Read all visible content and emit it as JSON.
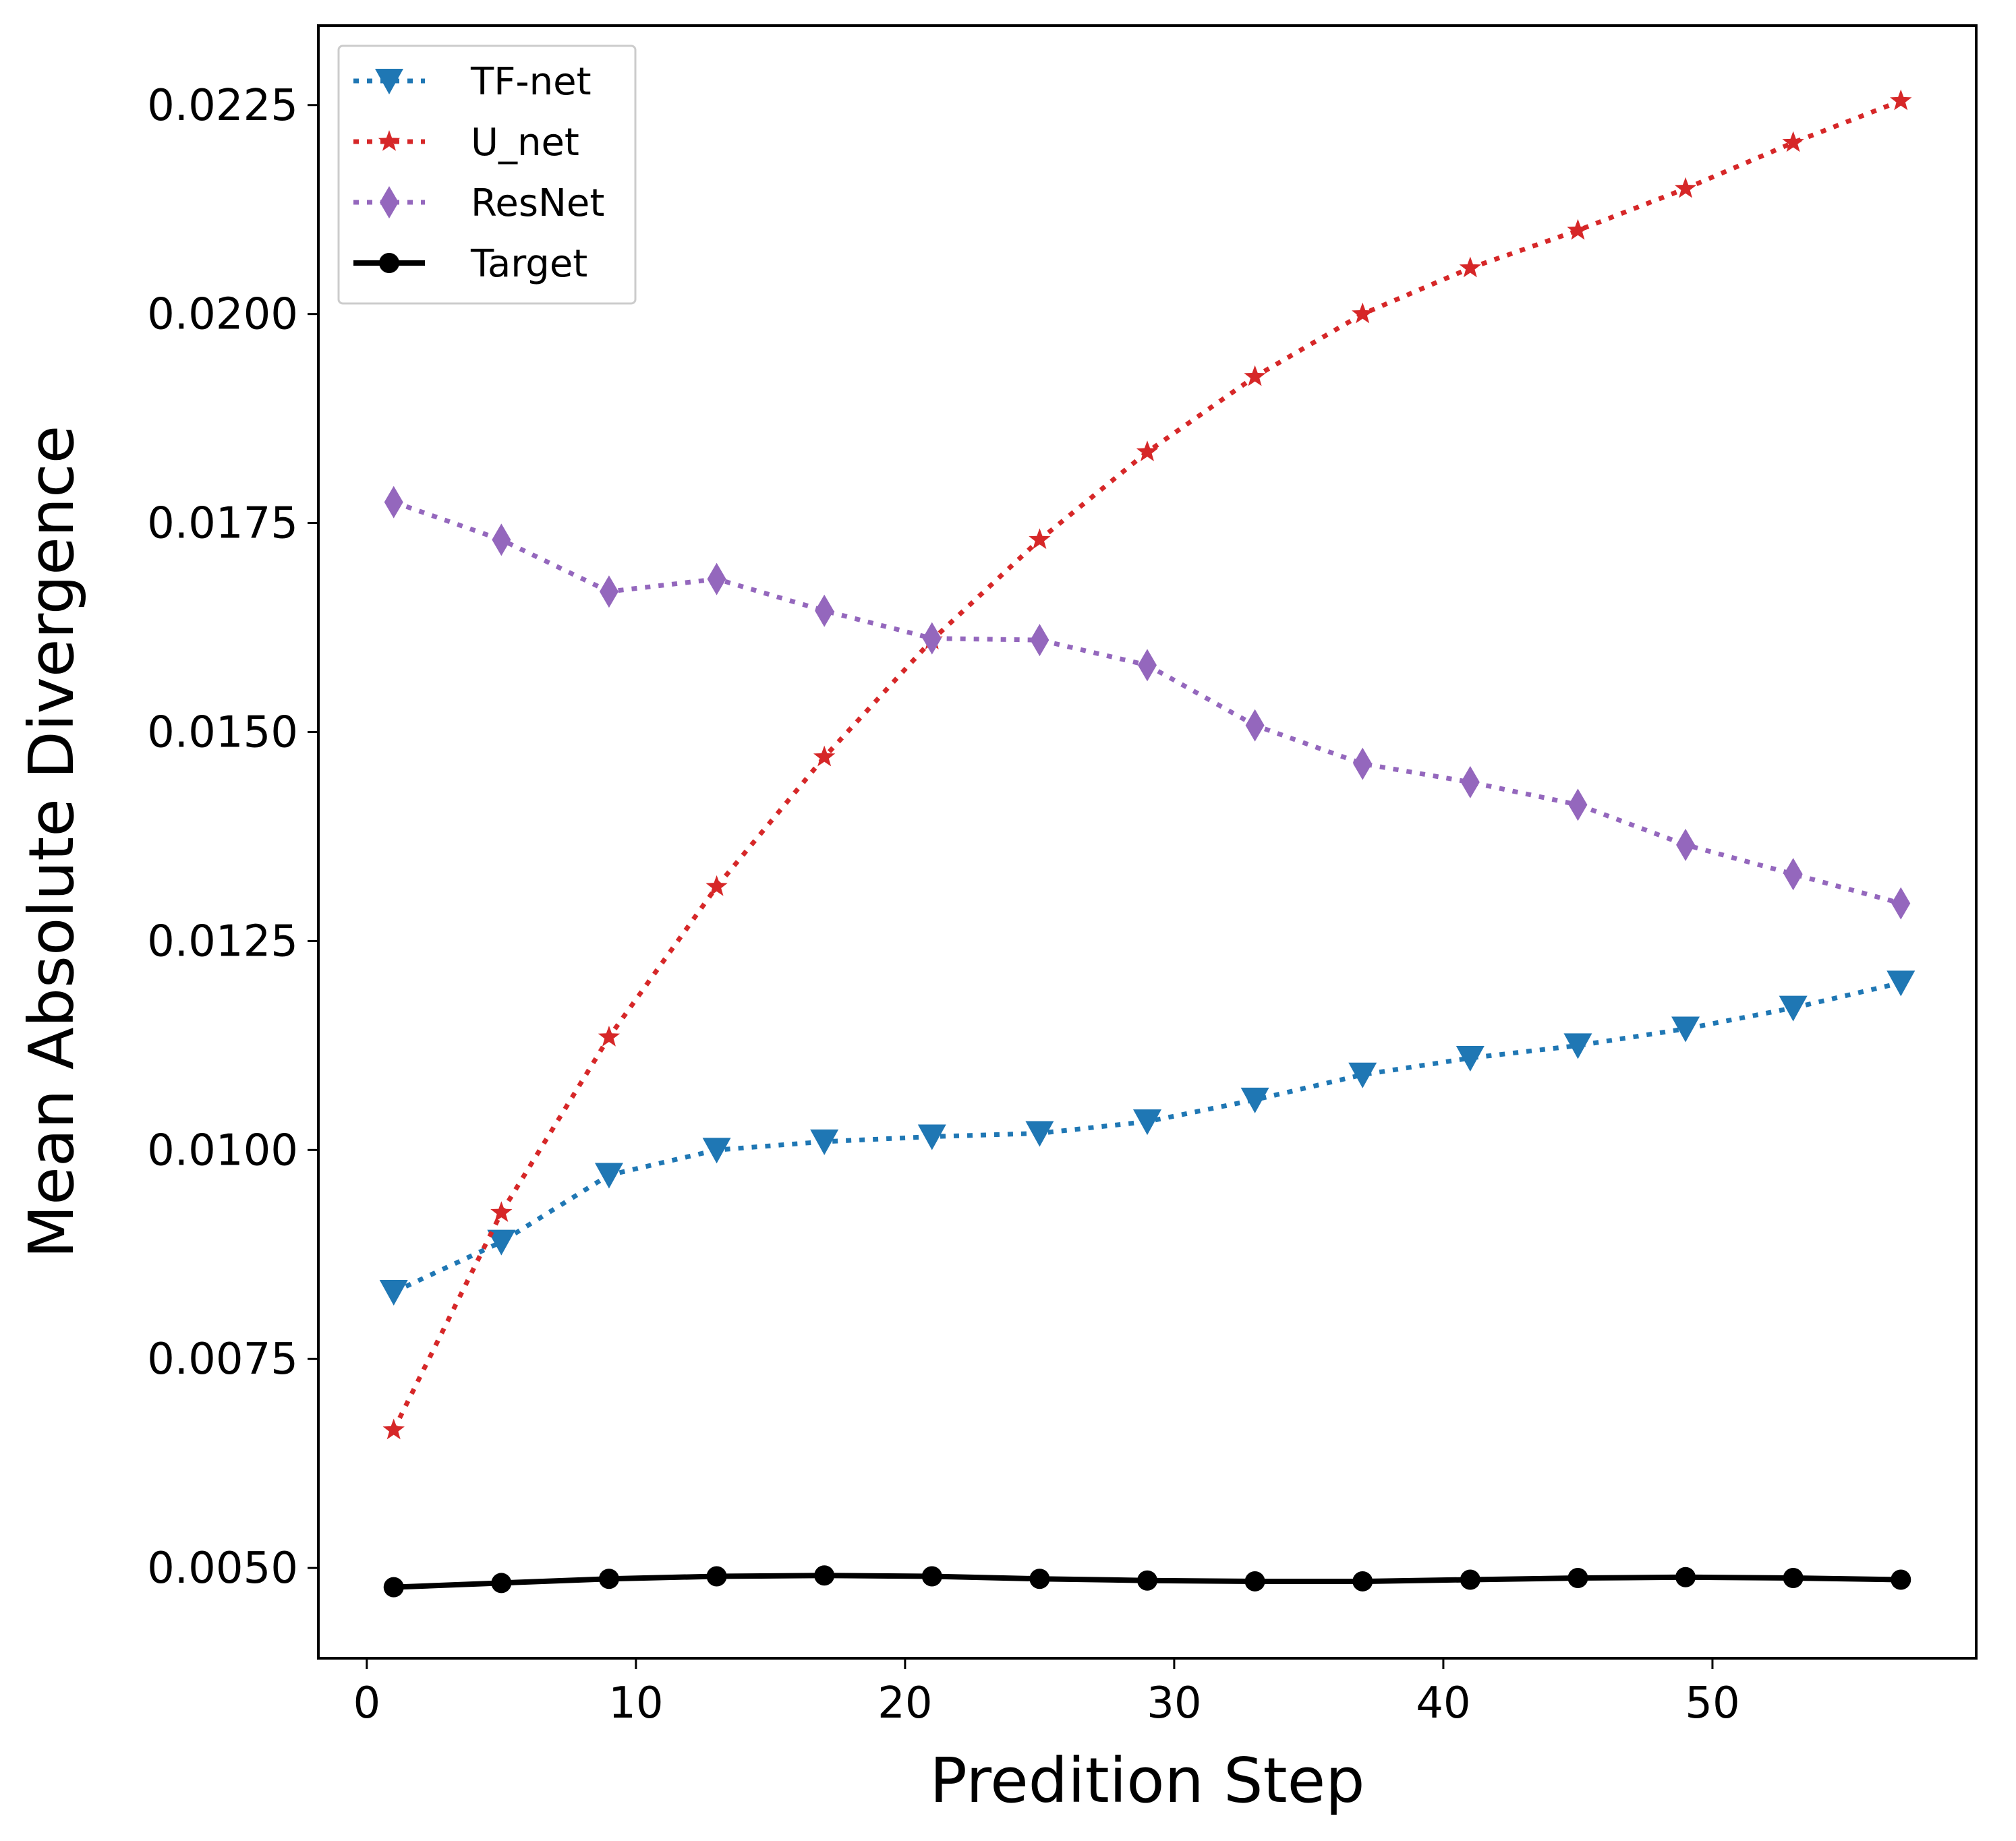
{
  "chart_data": {
    "type": "line",
    "title": "",
    "xlabel": "Predition Step",
    "ylabel": "Mean Absolute Divergence",
    "xlim": [
      -1.8,
      59.8
    ],
    "ylim": [
      0.00392,
      0.02345
    ],
    "xticks": [
      0,
      10,
      20,
      30,
      40,
      50
    ],
    "xtick_labels": [
      "0",
      "10",
      "20",
      "30",
      "40",
      "50"
    ],
    "yticks": [
      0.005,
      0.0075,
      0.01,
      0.0125,
      0.015,
      0.0175,
      0.02,
      0.0225
    ],
    "ytick_labels": [
      "0.0050",
      "0.0075",
      "0.0100",
      "0.0125",
      "0.0150",
      "0.0175",
      "0.0200",
      "0.0225"
    ],
    "grid": false,
    "legend_position": "upper-left",
    "x": [
      1,
      5,
      9,
      13,
      17,
      21,
      25,
      29,
      33,
      37,
      41,
      45,
      49,
      53,
      57
    ],
    "series": [
      {
        "name": "TF-net",
        "color": "#1f77b4",
        "linestyle": "dotted",
        "marker": "triangle-down",
        "values": [
          0.0083,
          0.0089,
          0.0097,
          0.01,
          0.0101,
          0.01016,
          0.0102,
          0.01034,
          0.0106,
          0.0109,
          0.0111,
          0.01125,
          0.01145,
          0.0117,
          0.012
        ]
      },
      {
        "name": "U_net",
        "color": "#d62728",
        "linestyle": "dotted",
        "marker": "star",
        "values": [
          0.00665,
          0.00925,
          0.01135,
          0.01315,
          0.0147,
          0.0161,
          0.0173,
          0.01835,
          0.01925,
          0.02,
          0.02055,
          0.021,
          0.0215,
          0.02205,
          0.02255
        ]
      },
      {
        "name": "ResNet",
        "color": "#9467bd",
        "linestyle": "dotted",
        "marker": "thin-diamond",
        "values": [
          0.01775,
          0.0173,
          0.01668,
          0.01683,
          0.01645,
          0.01612,
          0.0161,
          0.0158,
          0.01508,
          0.01462,
          0.0144,
          0.01413,
          0.01365,
          0.0133,
          0.01295
        ]
      },
      {
        "name": "Target",
        "color": "#000000",
        "linestyle": "solid",
        "marker": "circle",
        "values": [
          0.00477,
          0.00482,
          0.00487,
          0.0049,
          0.00491,
          0.0049,
          0.00487,
          0.00485,
          0.00484,
          0.00484,
          0.00486,
          0.00488,
          0.00489,
          0.00488,
          0.00486
        ]
      }
    ]
  }
}
